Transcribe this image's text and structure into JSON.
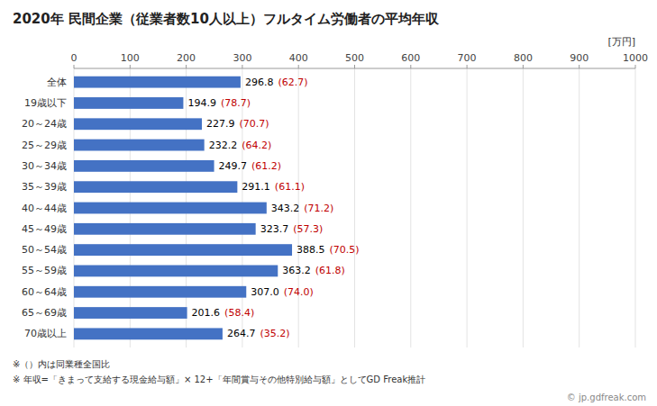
{
  "chart_data": {
    "type": "bar",
    "orientation": "horizontal",
    "title": "2020年 民間企業（従業者数10人以上）フルタイム労働者の平均年収",
    "unit_label": "[万円]",
    "categories": [
      "全体",
      "19歳以下",
      "20～24歳",
      "25～29歳",
      "30～34歳",
      "35～39歳",
      "40～44歳",
      "45～49歳",
      "50～54歳",
      "55～59歳",
      "60～64歳",
      "65～69歳",
      "70歳以上"
    ],
    "values": [
      296.8,
      194.9,
      227.9,
      232.2,
      249.7,
      291.1,
      343.2,
      323.7,
      388.5,
      363.2,
      307.0,
      201.6,
      264.7
    ],
    "value_labels": [
      "296.8",
      "194.9",
      "227.9",
      "232.2",
      "249.7",
      "291.1",
      "343.2",
      "323.7",
      "388.5",
      "363.2",
      "307.0",
      "201.6",
      "264.7"
    ],
    "ratios": [
      62.7,
      78.7,
      70.7,
      64.2,
      61.2,
      61.1,
      71.2,
      57.3,
      70.5,
      61.8,
      74.0,
      58.4,
      35.2
    ],
    "ratio_labels": [
      "(62.7)",
      "(78.7)",
      "(70.7)",
      "(64.2)",
      "(61.2)",
      "(61.1)",
      "(71.2)",
      "(57.3)",
      "(70.5)",
      "(61.8)",
      "(74.0)",
      "(58.4)",
      "(35.2)"
    ],
    "color": "#4472C4",
    "data_labels": true,
    "grid": true,
    "xlim": [
      0,
      1000
    ],
    "xticks": [
      0,
      100,
      200,
      300,
      400,
      500,
      600,
      700,
      800,
      900,
      1000
    ],
    "footnotes": [
      "※（）内は同業種全国比",
      "※ 年収=「きまって支給する現金給与額」× 12+「年間賞与その他特別給与額」としてGD Freak推計"
    ],
    "watermark": "© jp.gdfreak.com"
  }
}
